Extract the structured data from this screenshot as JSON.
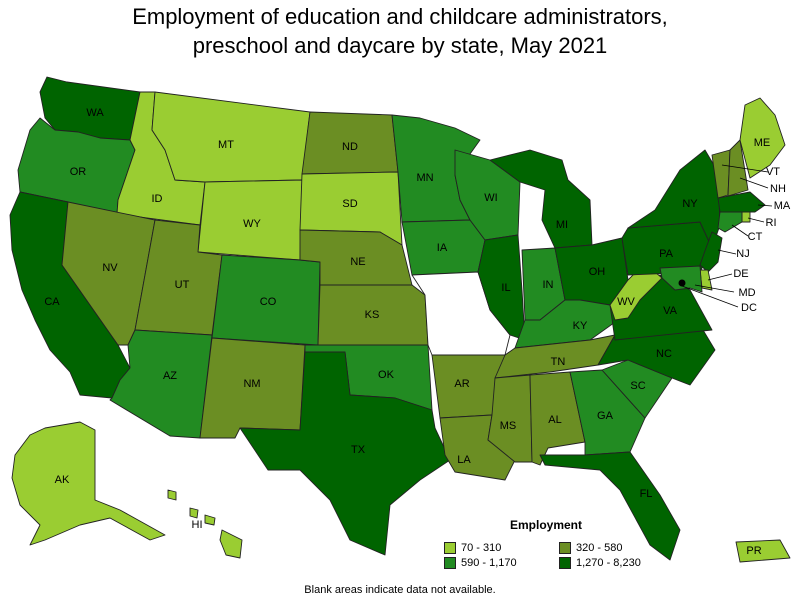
{
  "title_line1": "Employment of education and childcare administrators,",
  "title_line2": "preschool and daycare by state, May 2021",
  "legend": {
    "title": "Employment",
    "items": [
      {
        "label": "70 - 310",
        "color": "#9acd32"
      },
      {
        "label": "320 - 580",
        "color": "#6b8e23"
      },
      {
        "label": "590 - 1,170",
        "color": "#228b22"
      },
      {
        "label": "1,270 - 8,230",
        "color": "#006400"
      }
    ]
  },
  "footnote": "Blank areas indicate data not available.",
  "colors": {
    "c1": "#9acd32",
    "c2": "#6b8e23",
    "c3": "#228b22",
    "c4": "#006400",
    "na": "#ffffff"
  },
  "states": {
    "WA": "c4",
    "OR": "c3",
    "CA": "c4",
    "ID": "c1",
    "NV": "c2",
    "MT": "c1",
    "WY": "c1",
    "UT": "c2",
    "AZ": "c3",
    "CO": "c3",
    "NM": "c2",
    "ND": "c2",
    "SD": "c1",
    "NE": "c2",
    "KS": "c2",
    "OK": "c3",
    "TX": "c4",
    "MN": "c3",
    "IA": "c3",
    "MO": "na",
    "AR": "c2",
    "LA": "c2",
    "WI": "c3",
    "IL": "c4",
    "MI": "c4",
    "IN": "c3",
    "OH": "c4",
    "KY": "c3",
    "TN": "c2",
    "MS": "c2",
    "AL": "c2",
    "GA": "c3",
    "FL": "c4",
    "SC": "c3",
    "NC": "c4",
    "VA": "c4",
    "WV": "c1",
    "PA": "c4",
    "NY": "c4",
    "VT": "c2",
    "NH": "c2",
    "ME": "c1",
    "MA": "c4",
    "RI": "c1",
    "CT": "c3",
    "NJ": "c4",
    "DE": "c1",
    "MD": "c3",
    "DC": "c4",
    "AK": "c1",
    "HI": "c1",
    "PR": "c1"
  },
  "labels": {
    "WA": "WA",
    "OR": "OR",
    "CA": "CA",
    "ID": "ID",
    "NV": "NV",
    "MT": "MT",
    "WY": "WY",
    "UT": "UT",
    "AZ": "AZ",
    "CO": "CO",
    "NM": "NM",
    "ND": "ND",
    "SD": "SD",
    "NE": "NE",
    "KS": "KS",
    "OK": "OK",
    "TX": "TX",
    "MN": "MN",
    "IA": "IA",
    "AR": "AR",
    "LA": "LA",
    "WI": "WI",
    "IL": "IL",
    "MI": "MI",
    "IN": "IN",
    "OH": "OH",
    "KY": "KY",
    "TN": "TN",
    "MS": "MS",
    "AL": "AL",
    "GA": "GA",
    "FL": "FL",
    "SC": "SC",
    "NC": "NC",
    "VA": "VA",
    "WV": "WV",
    "PA": "PA",
    "NY": "NY",
    "VT": "VT",
    "NH": "NH",
    "ME": "ME",
    "MA": "MA",
    "RI": "RI",
    "CT": "CT",
    "NJ": "NJ",
    "DE": "DE",
    "MD": "MD",
    "DC": "DC",
    "AK": "AK",
    "HI": "HI",
    "PR": "PR"
  }
}
